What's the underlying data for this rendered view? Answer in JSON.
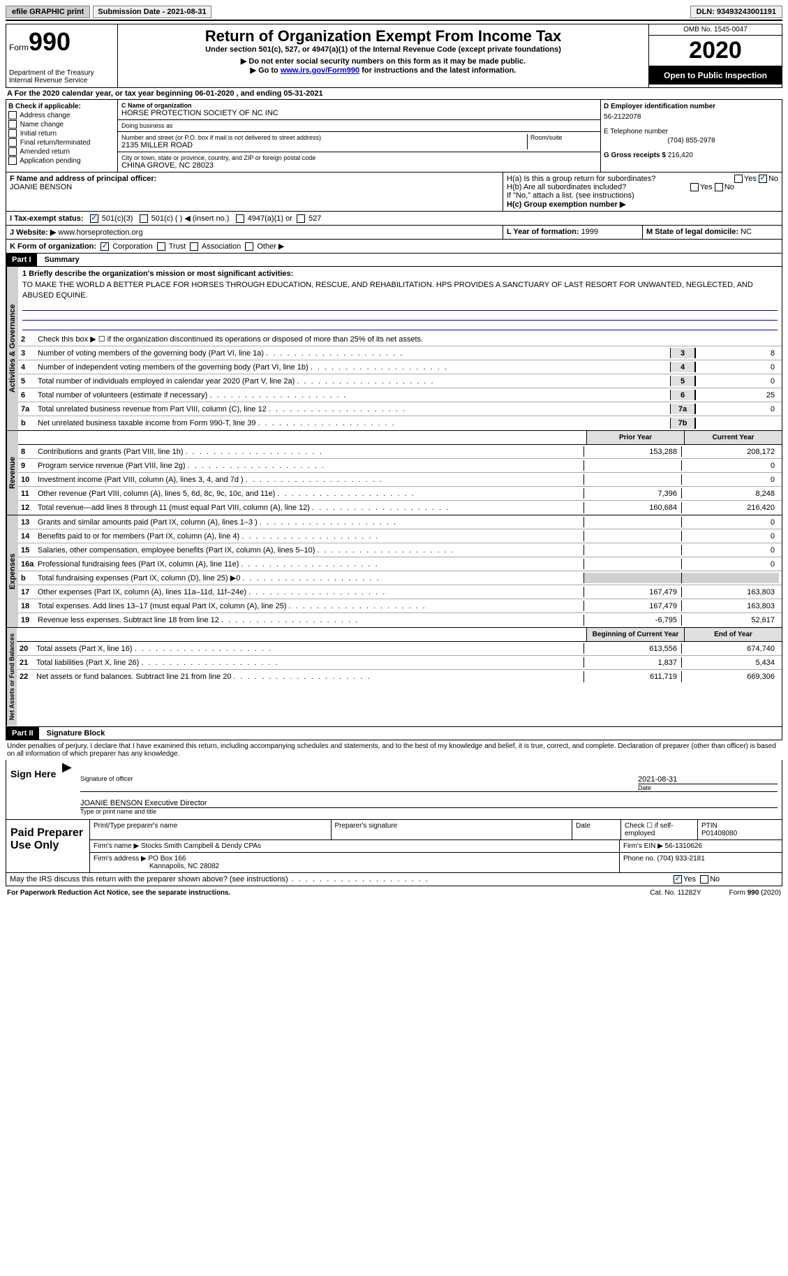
{
  "topbar": {
    "efile_label": "efile GRAPHIC print",
    "submission_label": "Submission Date - 2021-08-31",
    "dln_label": "DLN: 93493243001191"
  },
  "header": {
    "form_word": "Form",
    "form_number": "990",
    "department": "Department of the Treasury\nInternal Revenue Service",
    "title": "Return of Organization Exempt From Income Tax",
    "subtitle": "Under section 501(c), 527, or 4947(a)(1) of the Internal Revenue Code (except private foundations)",
    "note1": "▶ Do not enter social security numbers on this form as it may be made public.",
    "note2_pre": "▶ Go to ",
    "note2_link": "www.irs.gov/Form990",
    "note2_post": " for instructions and the latest information.",
    "omb": "OMB No. 1545-0047",
    "year": "2020",
    "inspection": "Open to Public Inspection"
  },
  "period": {
    "text": "A For the 2020 calendar year, or tax year beginning 06-01-2020   , and ending 05-31-2021"
  },
  "box_b": {
    "label": "B Check if applicable:",
    "items": [
      "Address change",
      "Name change",
      "Initial return",
      "Final return/terminated",
      "Amended return",
      "Application pending"
    ]
  },
  "box_c": {
    "name_label": "C Name of organization",
    "name_value": "HORSE PROTECTION SOCIETY OF NC INC",
    "dba_label": "Doing business as",
    "dba_value": "",
    "street_label": "Number and street (or P.O. box if mail is not delivered to street address)",
    "room_label": "Room/suite",
    "street_value": "2135 MILLER ROAD",
    "city_label": "City or town, state or province, country, and ZIP or foreign postal code",
    "city_value": "CHINA GROVE, NC  28023"
  },
  "box_d": {
    "ein_label": "D Employer identification number",
    "ein_value": "56-2122078",
    "phone_label": "E Telephone number",
    "phone_value": "(704) 855-2978",
    "gross_label": "G Gross receipts $",
    "gross_value": "216,420"
  },
  "box_f": {
    "label": "F Name and address of principal officer:",
    "value": "JOANIE BENSON"
  },
  "box_h": {
    "ha_label": "H(a)  Is this a group return for subordinates?",
    "hb_label": "H(b)  Are all subordinates included?",
    "hb_note": "If \"No,\" attach a list. (see instructions)",
    "hc_label": "H(c)  Group exemption number ▶",
    "yes": "Yes",
    "no": "No"
  },
  "row_i": {
    "label": "I   Tax-exempt status:",
    "opt1": "501(c)(3)",
    "opt2": "501(c) (  ) ◀ (insert no.)",
    "opt3": "4947(a)(1) or",
    "opt4": "527"
  },
  "row_j": {
    "label": "J   Website: ▶",
    "value": "www.horseprotection.org"
  },
  "row_k": {
    "label": "K Form of organization:",
    "opts": [
      "Corporation",
      "Trust",
      "Association",
      "Other ▶"
    ]
  },
  "row_lm": {
    "l_label": "L Year of formation:",
    "l_value": "1999",
    "m_label": "M State of legal domicile:",
    "m_value": "NC"
  },
  "part1": {
    "hdr": "Part I",
    "title": "Summary",
    "q1_label": "1   Briefly describe the organization's mission or most significant activities:",
    "q1_value": "TO MAKE THE WORLD A BETTER PLACE FOR HORSES THROUGH EDUCATION, RESCUE, AND REHABILITATION. HPS PROVIDES A SANCTUARY OF LAST RESORT FOR UNWANTED, NEGLECTED, AND ABUSED EQUINE.",
    "q2": "Check this box ▶ ☐  if the organization discontinued its operations or disposed of more than 25% of its net assets.",
    "tabs": {
      "gov": "Activities & Governance",
      "rev": "Revenue",
      "exp": "Expenses",
      "net": "Net Assets or Fund Balances"
    },
    "gov_lines": [
      {
        "n": "3",
        "t": "Number of voting members of the governing body (Part VI, line 1a)",
        "box": "3",
        "v": "8"
      },
      {
        "n": "4",
        "t": "Number of independent voting members of the governing body (Part VI, line 1b)",
        "box": "4",
        "v": "0"
      },
      {
        "n": "5",
        "t": "Total number of individuals employed in calendar year 2020 (Part V, line 2a)",
        "box": "5",
        "v": "0"
      },
      {
        "n": "6",
        "t": "Total number of volunteers (estimate if necessary)",
        "box": "6",
        "v": "25"
      },
      {
        "n": "7a",
        "t": "Total unrelated business revenue from Part VIII, column (C), line 12",
        "box": "7a",
        "v": "0"
      },
      {
        "n": "b",
        "t": "Net unrelated business taxable income from Form 990-T, line 39",
        "box": "7b",
        "v": ""
      }
    ],
    "col_hdr_prior": "Prior Year",
    "col_hdr_current": "Current Year",
    "rev_lines": [
      {
        "n": "8",
        "t": "Contributions and grants (Part VIII, line 1h)",
        "p": "153,288",
        "c": "208,172"
      },
      {
        "n": "9",
        "t": "Program service revenue (Part VIII, line 2g)",
        "p": "",
        "c": "0"
      },
      {
        "n": "10",
        "t": "Investment income (Part VIII, column (A), lines 3, 4, and 7d )",
        "p": "",
        "c": "0"
      },
      {
        "n": "11",
        "t": "Other revenue (Part VIII, column (A), lines 5, 6d, 8c, 9c, 10c, and 11e)",
        "p": "7,396",
        "c": "8,248"
      },
      {
        "n": "12",
        "t": "Total revenue—add lines 8 through 11 (must equal Part VIII, column (A), line 12)",
        "p": "160,684",
        "c": "216,420"
      }
    ],
    "exp_lines": [
      {
        "n": "13",
        "t": "Grants and similar amounts paid (Part IX, column (A), lines 1–3 )",
        "p": "",
        "c": "0"
      },
      {
        "n": "14",
        "t": "Benefits paid to or for members (Part IX, column (A), line 4)",
        "p": "",
        "c": "0"
      },
      {
        "n": "15",
        "t": "Salaries, other compensation, employee benefits (Part IX, column (A), lines 5–10)",
        "p": "",
        "c": "0"
      },
      {
        "n": "16a",
        "t": "Professional fundraising fees (Part IX, column (A), line 11e)",
        "p": "",
        "c": "0"
      },
      {
        "n": "b",
        "t": "Total fundraising expenses (Part IX, column (D), line 25) ▶0",
        "p": "shade",
        "c": "shade"
      },
      {
        "n": "17",
        "t": "Other expenses (Part IX, column (A), lines 11a–11d, 11f–24e)",
        "p": "167,479",
        "c": "163,803"
      },
      {
        "n": "18",
        "t": "Total expenses. Add lines 13–17 (must equal Part IX, column (A), line 25)",
        "p": "167,479",
        "c": "163,803"
      },
      {
        "n": "19",
        "t": "Revenue less expenses. Subtract line 18 from line 12",
        "p": "-6,795",
        "c": "52,617"
      }
    ],
    "net_hdr_beg": "Beginning of Current Year",
    "net_hdr_end": "End of Year",
    "net_lines": [
      {
        "n": "20",
        "t": "Total assets (Part X, line 16)",
        "p": "613,556",
        "c": "674,740"
      },
      {
        "n": "21",
        "t": "Total liabilities (Part X, line 26)",
        "p": "1,837",
        "c": "5,434"
      },
      {
        "n": "22",
        "t": "Net assets or fund balances. Subtract line 21 from line 20",
        "p": "611,719",
        "c": "669,306"
      }
    ]
  },
  "part2": {
    "hdr": "Part II",
    "title": "Signature Block",
    "penalty": "Under penalties of perjury, I declare that I have examined this return, including accompanying schedules and statements, and to the best of my knowledge and belief, it is true, correct, and complete. Declaration of preparer (other than officer) is based on all information of which preparer has any knowledge.",
    "sign_here": "Sign Here",
    "sig_officer_label": "Signature of officer",
    "sig_date_label": "Date",
    "sig_date_value": "2021-08-31",
    "name_title_value": "JOANIE BENSON  Executive Director",
    "name_title_label": "Type or print name and title",
    "paid_prep": "Paid Preparer Use Only",
    "prep_cols": [
      "Print/Type preparer's name",
      "Preparer's signature",
      "Date"
    ],
    "check_if": "Check ☐ if self-employed",
    "ptin_label": "PTIN",
    "ptin_value": "P01408080",
    "firm_name_label": "Firm's name   ▶",
    "firm_name_value": "Stocks Smith Campbell & Dendy CPAs",
    "firm_ein_label": "Firm's EIN ▶",
    "firm_ein_value": "56-1310626",
    "firm_addr_label": "Firm's address ▶",
    "firm_addr_value": "PO Box 166",
    "firm_addr_value2": "Kannapolis, NC  28082",
    "firm_phone_label": "Phone no.",
    "firm_phone_value": "(704) 933-2181",
    "discuss": "May the IRS discuss this return with the preparer shown above? (see instructions)",
    "yes": "Yes",
    "no": "No"
  },
  "footer": {
    "left": "For Paperwork Reduction Act Notice, see the separate instructions.",
    "mid": "Cat. No. 11282Y",
    "right": "Form 990 (2020)"
  }
}
